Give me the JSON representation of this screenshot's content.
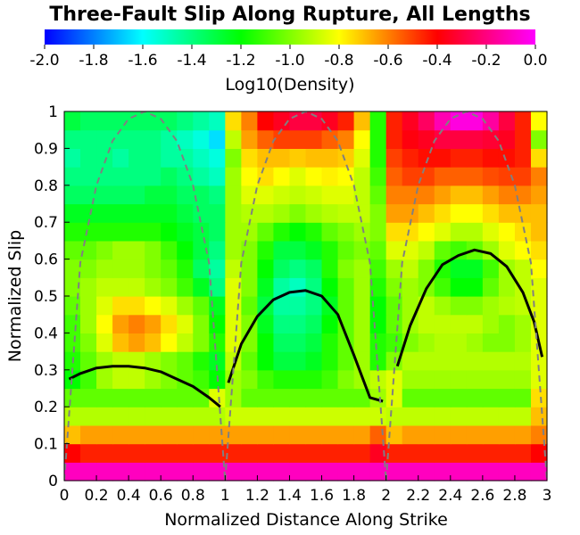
{
  "chart_data": {
    "type": "heatmap",
    "title": "Three-Fault Slip Along Rupture, All Lengths",
    "xlabel": "Normalized Distance Along Strike",
    "ylabel": "Normalized Slip",
    "xlim": [
      0,
      3
    ],
    "ylim": [
      0,
      1
    ],
    "xticks": [
      "0",
      "0.2",
      "0.4",
      "0.6",
      "0.8",
      "1",
      "1.2",
      "1.4",
      "1.6",
      "1.8",
      "2",
      "2.2",
      "2.4",
      "2.6",
      "2.8",
      "3"
    ],
    "yticks": [
      "0",
      "0.1",
      "0.2",
      "0.3",
      "0.4",
      "0.5",
      "0.6",
      "0.7",
      "0.8",
      "0.9",
      "1"
    ],
    "colorbar": {
      "label": "Log10(Density)",
      "range": [
        -2.0,
        0.0
      ],
      "ticks": [
        "-2.0",
        "-1.8",
        "-1.6",
        "-1.4",
        "-1.2",
        "-1.0",
        "-0.8",
        "-0.6",
        "-0.4",
        "-0.2",
        "0.0"
      ],
      "colors": [
        "#0000ff",
        "#00ffff",
        "#00ff00",
        "#ffff00",
        "#ff0000",
        "#ff00ff"
      ]
    },
    "heatmap": {
      "x_bins": 30,
      "y_bins": 20,
      "row_order": "bottom-to-top",
      "rows": [
        [
          -0.1,
          -0.1,
          -0.1,
          -0.1,
          -0.1,
          -0.1,
          -0.1,
          -0.1,
          -0.1,
          -0.1,
          -0.1,
          -0.1,
          -0.1,
          -0.1,
          -0.1,
          -0.1,
          -0.1,
          -0.1,
          -0.1,
          -0.1,
          -0.1,
          -0.1,
          -0.1,
          -0.1,
          -0.1,
          -0.1,
          -0.1,
          -0.1,
          -0.1,
          -0.1
        ],
        [
          -0.4,
          -0.45,
          -0.45,
          -0.45,
          -0.45,
          -0.45,
          -0.45,
          -0.45,
          -0.45,
          -0.45,
          -0.45,
          -0.45,
          -0.45,
          -0.45,
          -0.45,
          -0.45,
          -0.45,
          -0.45,
          -0.45,
          -0.35,
          -0.45,
          -0.45,
          -0.45,
          -0.45,
          -0.45,
          -0.45,
          -0.45,
          -0.45,
          -0.45,
          -0.4
        ],
        [
          -0.7,
          -0.65,
          -0.65,
          -0.65,
          -0.65,
          -0.65,
          -0.65,
          -0.65,
          -0.65,
          -0.65,
          -0.65,
          -0.65,
          -0.65,
          -0.65,
          -0.65,
          -0.65,
          -0.65,
          -0.65,
          -0.65,
          -0.55,
          -0.7,
          -0.65,
          -0.65,
          -0.65,
          -0.65,
          -0.65,
          -0.65,
          -0.65,
          -0.65,
          -0.6
        ],
        [
          -0.92,
          -0.92,
          -0.92,
          -0.92,
          -0.92,
          -0.92,
          -0.92,
          -0.92,
          -0.92,
          -0.92,
          -0.88,
          -0.88,
          -0.88,
          -0.88,
          -0.88,
          -0.88,
          -0.88,
          -0.88,
          -0.88,
          -0.88,
          -0.9,
          -0.9,
          -0.9,
          -0.9,
          -0.9,
          -0.9,
          -0.9,
          -0.9,
          -0.9,
          -0.7
        ],
        [
          -1.05,
          -1.05,
          -1.05,
          -1.05,
          -1.05,
          -1.05,
          -1.05,
          -1.05,
          -1.05,
          -0.85,
          -0.95,
          -1.05,
          -1.05,
          -1.05,
          -1.05,
          -1.05,
          -1.05,
          -1.05,
          -1.05,
          -0.95,
          -0.85,
          -1.05,
          -1.05,
          -1.05,
          -1.05,
          -1.05,
          -1.05,
          -1.05,
          -1.05,
          -0.75
        ],
        [
          -1.2,
          -1.1,
          -0.95,
          -0.9,
          -0.9,
          -0.95,
          -1.0,
          -1.05,
          -1.1,
          -1.2,
          -0.95,
          -1.0,
          -1.1,
          -1.15,
          -1.15,
          -1.15,
          -1.1,
          -1.0,
          -0.95,
          -0.9,
          -0.85,
          -0.95,
          -0.95,
          -0.95,
          -0.95,
          -0.95,
          -0.95,
          -0.95,
          -0.95,
          -0.85
        ],
        [
          -1.15,
          -1.05,
          -0.95,
          -0.9,
          -0.9,
          -0.95,
          -1.0,
          -1.05,
          -1.15,
          -1.25,
          -0.9,
          -1.05,
          -1.2,
          -1.3,
          -1.3,
          -1.25,
          -1.15,
          -1.05,
          -0.95,
          -1.15,
          -1.0,
          -0.92,
          -0.92,
          -0.92,
          -0.92,
          -0.92,
          -0.92,
          -0.92,
          -0.92,
          -0.85
        ],
        [
          -1.1,
          -1.0,
          -0.85,
          -0.7,
          -0.65,
          -0.7,
          -0.8,
          -0.9,
          -1.0,
          -1.15,
          -0.85,
          -1.0,
          -1.2,
          -1.35,
          -1.35,
          -1.3,
          -1.15,
          -1.05,
          -0.95,
          -1.15,
          -1.1,
          -1.0,
          -0.95,
          -0.92,
          -0.92,
          -0.95,
          -1.0,
          -1.0,
          -0.95,
          -0.85
        ],
        [
          -1.1,
          -0.95,
          -0.8,
          -0.65,
          -0.6,
          -0.65,
          -0.75,
          -0.85,
          -1.0,
          -1.2,
          -0.85,
          -1.0,
          -1.25,
          -1.4,
          -1.4,
          -1.35,
          -1.2,
          -1.05,
          -0.95,
          -1.2,
          -1.05,
          -0.95,
          -0.9,
          -0.9,
          -0.9,
          -0.9,
          -0.95,
          -1.0,
          -0.95,
          -0.85
        ],
        [
          -1.05,
          -0.95,
          -0.85,
          -0.75,
          -0.75,
          -0.8,
          -0.85,
          -0.95,
          -1.05,
          -1.25,
          -0.85,
          -1.05,
          -1.3,
          -1.45,
          -1.45,
          -1.4,
          -1.25,
          -1.05,
          -0.95,
          -1.2,
          -1.05,
          -0.95,
          -0.9,
          -0.95,
          -1.0,
          -1.0,
          -0.95,
          -0.92,
          -0.9,
          -0.85
        ],
        [
          -1.0,
          -0.95,
          -0.9,
          -0.9,
          -0.9,
          -0.95,
          -1.0,
          -1.1,
          -1.25,
          -1.4,
          -0.85,
          -1.0,
          -1.25,
          -1.45,
          -1.5,
          -1.4,
          -1.2,
          -1.05,
          -0.95,
          -1.15,
          -1.0,
          -0.95,
          -1.0,
          -1.1,
          -1.2,
          -1.2,
          -1.05,
          -0.95,
          -0.9,
          -0.85
        ],
        [
          -1.0,
          -1.0,
          -0.95,
          -0.95,
          -0.95,
          -1.0,
          -1.05,
          -1.15,
          -1.35,
          -1.45,
          -0.9,
          -1.0,
          -1.2,
          -1.35,
          -1.4,
          -1.35,
          -1.15,
          -1.0,
          -0.95,
          -1.1,
          -0.95,
          -0.9,
          -1.0,
          -1.15,
          -1.25,
          -1.25,
          -1.1,
          -0.95,
          -0.9,
          -0.8
        ],
        [
          -1.05,
          -1.05,
          -1.0,
          -0.95,
          -0.95,
          -1.0,
          -1.1,
          -1.2,
          -1.3,
          -1.4,
          -0.95,
          -1.0,
          -1.15,
          -1.3,
          -1.3,
          -1.25,
          -1.15,
          -1.05,
          -1.0,
          -1.05,
          -0.85,
          -0.85,
          -0.9,
          -1.05,
          -1.1,
          -1.05,
          -0.95,
          -0.85,
          -0.8,
          -0.75
        ],
        [
          -1.15,
          -1.15,
          -1.15,
          -1.15,
          -1.15,
          -1.15,
          -1.2,
          -1.25,
          -1.3,
          -1.35,
          -0.95,
          -0.95,
          -1.05,
          -1.15,
          -1.2,
          -1.15,
          -1.05,
          -1.0,
          -0.95,
          -1.0,
          -0.75,
          -0.75,
          -0.8,
          -0.85,
          -0.92,
          -0.92,
          -0.85,
          -0.8,
          -0.75,
          -0.7
        ],
        [
          -1.25,
          -1.25,
          -1.25,
          -1.25,
          -1.25,
          -1.25,
          -1.25,
          -1.3,
          -1.35,
          -1.35,
          -0.95,
          -0.92,
          -0.92,
          -0.95,
          -1.0,
          -0.95,
          -0.92,
          -0.9,
          -0.9,
          -1.0,
          -0.65,
          -0.65,
          -0.7,
          -0.75,
          -0.8,
          -0.8,
          -0.75,
          -0.7,
          -0.7,
          -0.7
        ],
        [
          -1.35,
          -1.35,
          -1.35,
          -1.35,
          -1.35,
          -1.3,
          -1.3,
          -1.35,
          -1.35,
          -1.4,
          -0.95,
          -0.85,
          -0.85,
          -0.88,
          -0.9,
          -0.88,
          -0.85,
          -0.85,
          -0.9,
          -1.05,
          -0.6,
          -0.6,
          -0.6,
          -0.65,
          -0.7,
          -0.7,
          -0.65,
          -0.6,
          -0.6,
          -0.65
        ],
        [
          -1.4,
          -1.4,
          -1.4,
          -1.4,
          -1.4,
          -1.4,
          -1.35,
          -1.4,
          -1.45,
          -1.5,
          -0.95,
          -0.8,
          -0.75,
          -0.8,
          -0.85,
          -0.8,
          -0.78,
          -0.8,
          -0.9,
          -1.1,
          -0.55,
          -0.5,
          -0.5,
          -0.55,
          -0.55,
          -0.55,
          -0.52,
          -0.5,
          -0.5,
          -0.6
        ],
        [
          -1.45,
          -1.4,
          -1.4,
          -1.45,
          -1.4,
          -1.4,
          -1.45,
          -1.45,
          -1.5,
          -1.55,
          -1.0,
          -0.75,
          -0.7,
          -0.7,
          -0.72,
          -0.7,
          -0.7,
          -0.72,
          -0.85,
          -1.15,
          -0.5,
          -0.45,
          -0.42,
          -0.42,
          -0.45,
          -0.45,
          -0.42,
          -0.42,
          -0.45,
          -0.75
        ],
        [
          -1.4,
          -1.4,
          -1.4,
          -1.4,
          -1.4,
          -1.4,
          -1.45,
          -1.5,
          -1.55,
          -1.65,
          -0.9,
          -0.65,
          -0.55,
          -0.5,
          -0.5,
          -0.5,
          -0.55,
          -0.6,
          -0.8,
          -1.15,
          -0.45,
          -0.38,
          -0.35,
          -0.3,
          -0.3,
          -0.3,
          -0.32,
          -0.35,
          -0.45,
          -1.0
        ],
        [
          -1.3,
          -1.35,
          -1.35,
          -1.35,
          -1.35,
          -1.35,
          -1.35,
          -1.4,
          -1.45,
          -1.5,
          -0.75,
          -0.6,
          -0.4,
          -0.35,
          -0.3,
          -0.3,
          -0.35,
          -0.45,
          -0.7,
          -1.15,
          -0.45,
          -0.35,
          -0.25,
          -0.12,
          -0.05,
          -0.05,
          -0.15,
          -0.3,
          -0.45,
          -0.8
        ]
      ]
    },
    "series": [
      {
        "style": "solid-black",
        "x": [
          0.03,
          0.1,
          0.2,
          0.3,
          0.4,
          0.5,
          0.6,
          0.7,
          0.8,
          0.9,
          0.97
        ],
        "y": [
          0.275,
          0.29,
          0.305,
          0.31,
          0.31,
          0.305,
          0.295,
          0.275,
          0.255,
          0.225,
          0.2
        ]
      },
      {
        "style": "solid-black",
        "x": [
          1.02,
          1.1,
          1.2,
          1.3,
          1.4,
          1.5,
          1.6,
          1.7,
          1.8,
          1.9,
          1.98
        ],
        "y": [
          0.265,
          0.37,
          0.445,
          0.49,
          0.51,
          0.515,
          0.5,
          0.45,
          0.34,
          0.225,
          0.215
        ]
      },
      {
        "style": "solid-black",
        "x": [
          2.07,
          2.15,
          2.25,
          2.35,
          2.45,
          2.55,
          2.65,
          2.75,
          2.85,
          2.92,
          2.97
        ],
        "y": [
          0.31,
          0.42,
          0.52,
          0.585,
          0.61,
          0.625,
          0.615,
          0.58,
          0.51,
          0.43,
          0.335
        ]
      },
      {
        "style": "dashed-gray",
        "x": [
          0.0,
          0.1,
          0.2,
          0.3,
          0.4,
          0.5,
          0.6,
          0.7,
          0.8,
          0.9,
          1.0
        ],
        "y": [
          0.0,
          0.59,
          0.8,
          0.92,
          0.98,
          1.0,
          0.98,
          0.92,
          0.8,
          0.59,
          0.0
        ]
      },
      {
        "style": "dashed-gray",
        "x": [
          1.0,
          1.1,
          1.2,
          1.3,
          1.4,
          1.5,
          1.6,
          1.7,
          1.8,
          1.9,
          2.0
        ],
        "y": [
          0.0,
          0.59,
          0.8,
          0.92,
          0.98,
          1.0,
          0.98,
          0.92,
          0.8,
          0.59,
          0.0
        ]
      },
      {
        "style": "dashed-gray",
        "x": [
          2.0,
          2.1,
          2.2,
          2.3,
          2.4,
          2.5,
          2.6,
          2.7,
          2.8,
          2.9,
          3.0
        ],
        "y": [
          0.0,
          0.59,
          0.8,
          0.92,
          0.98,
          1.0,
          0.98,
          0.92,
          0.8,
          0.59,
          0.0
        ]
      }
    ],
    "grid": false,
    "legend": "none"
  }
}
